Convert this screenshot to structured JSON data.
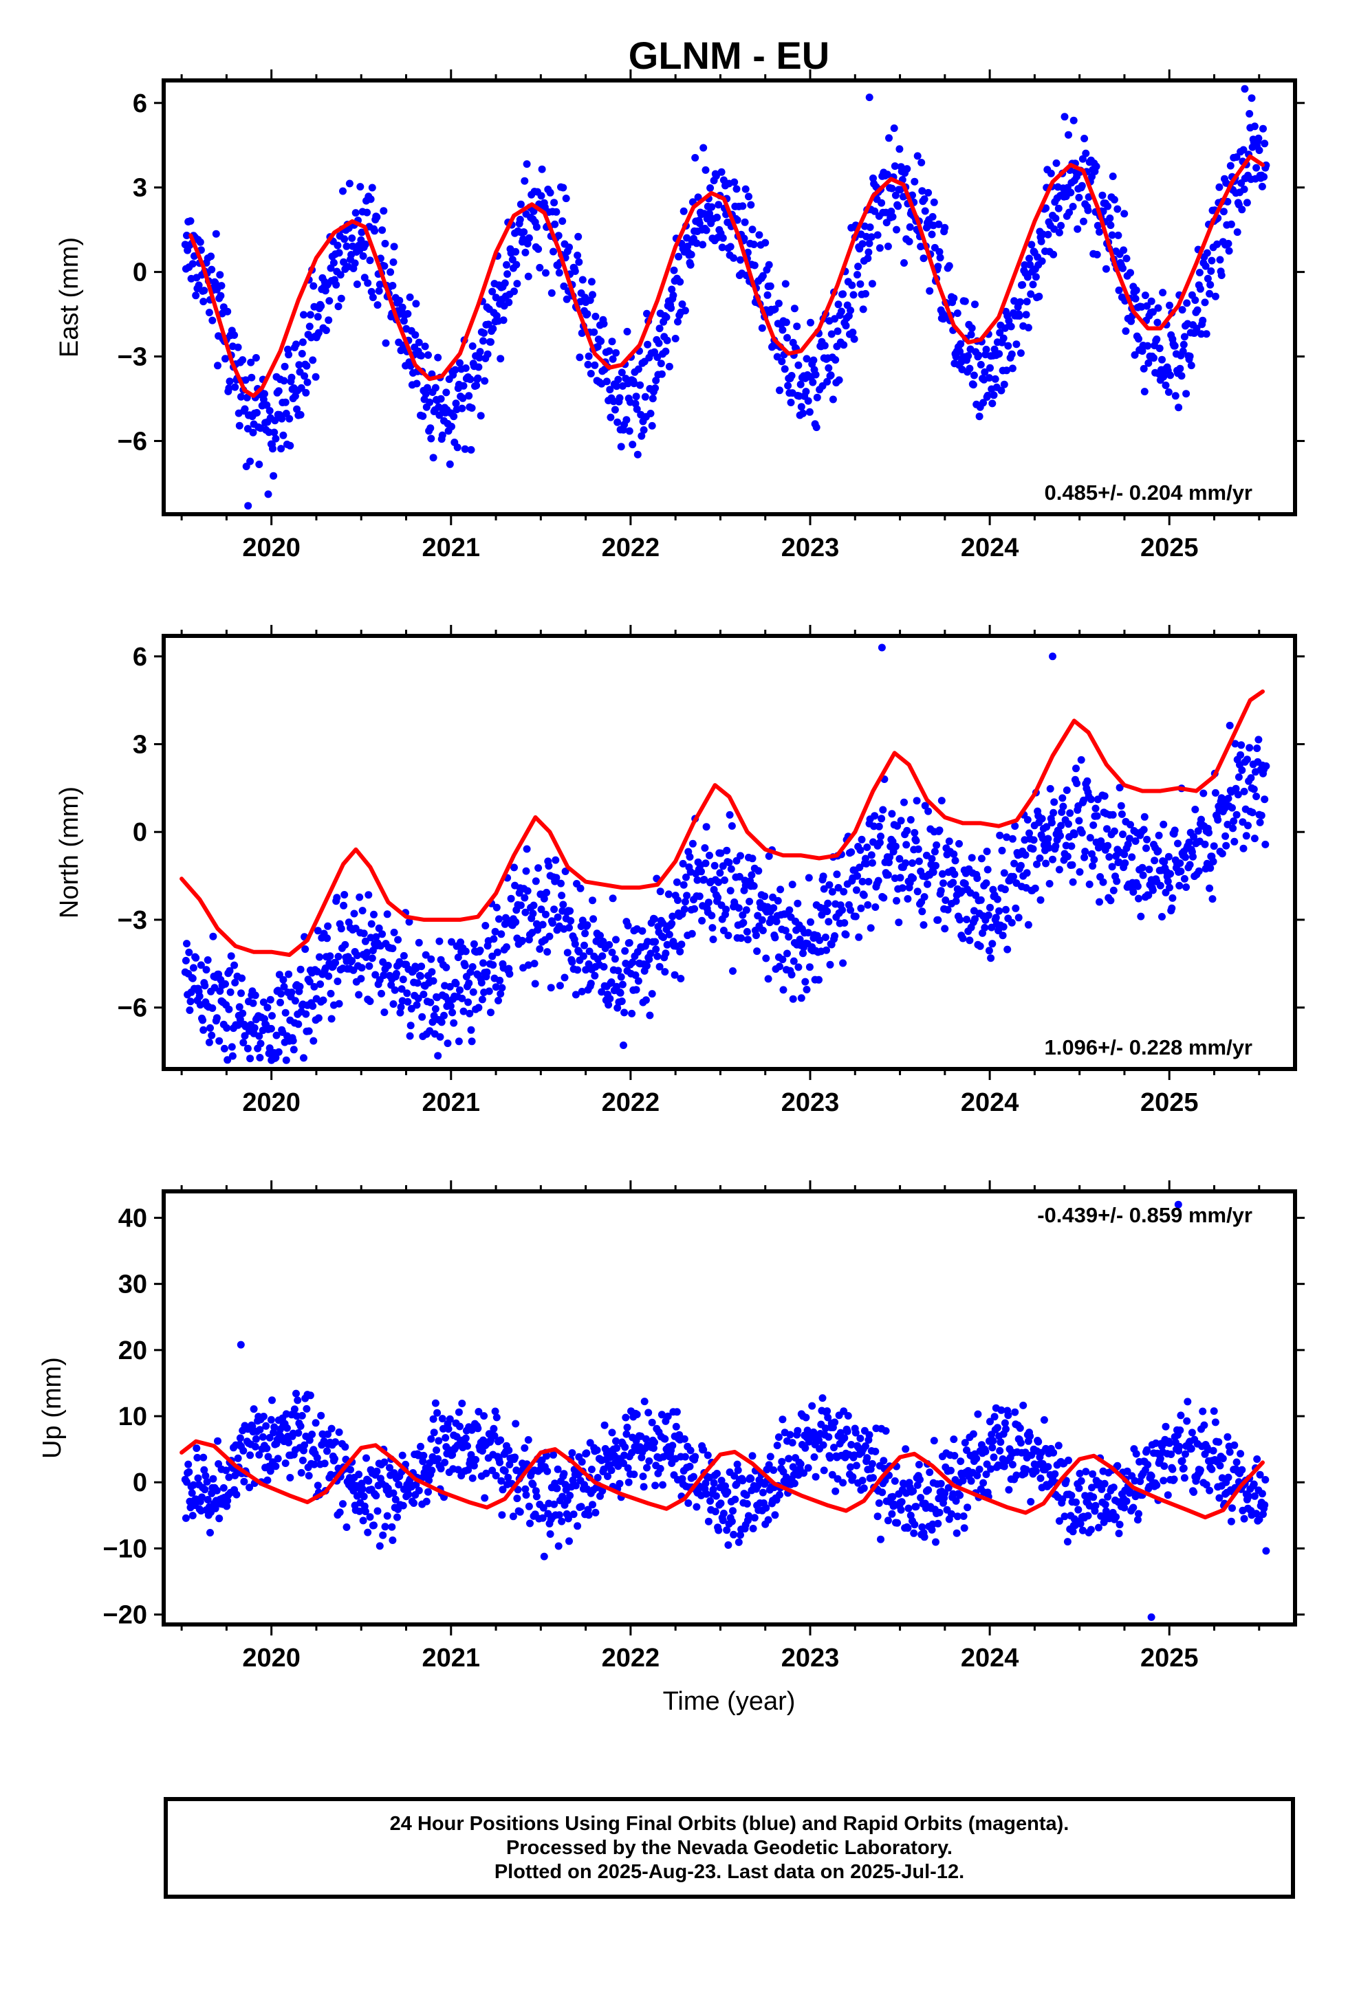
{
  "title": "GLNM - EU",
  "xlabel": "Time (year)",
  "colors": {
    "points": "#0000ff",
    "fit": "#ff0000",
    "frame": "#000000"
  },
  "chart_data": [
    {
      "type": "scatter",
      "ylabel": "East (mm)",
      "rate": "0.485+/- 0.204 mm/yr",
      "xlim": [
        2019.4,
        2025.7
      ],
      "ylim": [
        -8.6,
        6.8
      ],
      "yticks": [
        6,
        3,
        0,
        -3,
        -6
      ],
      "ytick_labels": [
        "6",
        "3",
        "0",
        "−3",
        "−6"
      ],
      "xticks": [
        2020,
        2021,
        2022,
        2023,
        2024,
        2025
      ],
      "xtick_labels": [
        "2020",
        "2021",
        "2022",
        "2023",
        "2024",
        "2025"
      ],
      "fit_series": {
        "name": "",
        "x": [
          2019.55,
          2019.62,
          2019.7,
          2019.78,
          2019.85,
          2019.9,
          2019.95,
          2020.05,
          2020.15,
          2020.25,
          2020.35,
          2020.45,
          2020.52,
          2020.6,
          2020.7,
          2020.8,
          2020.88,
          2020.95,
          2021.05,
          2021.15,
          2021.25,
          2021.35,
          2021.45,
          2021.52,
          2021.6,
          2021.7,
          2021.8,
          2021.88,
          2021.95,
          2022.05,
          2022.15,
          2022.25,
          2022.35,
          2022.45,
          2022.52,
          2022.6,
          2022.7,
          2022.8,
          2022.88,
          2022.95,
          2023.05,
          2023.15,
          2023.25,
          2023.35,
          2023.45,
          2023.52,
          2023.6,
          2023.7,
          2023.8,
          2023.88,
          2023.95,
          2024.05,
          2024.15,
          2024.25,
          2024.35,
          2024.45,
          2024.52,
          2024.6,
          2024.7,
          2024.8,
          2024.88,
          2024.95,
          2025.05,
          2025.15,
          2025.25,
          2025.35,
          2025.45,
          2025.52
        ],
        "y": [
          1.3,
          0.2,
          -1.5,
          -3.2,
          -4.2,
          -4.4,
          -4.1,
          -2.8,
          -1.0,
          0.5,
          1.4,
          1.8,
          1.6,
          0.2,
          -1.7,
          -3.3,
          -3.8,
          -3.7,
          -2.9,
          -1.2,
          0.7,
          2.0,
          2.4,
          2.1,
          0.8,
          -1.2,
          -2.9,
          -3.4,
          -3.3,
          -2.6,
          -1.0,
          0.9,
          2.3,
          2.8,
          2.6,
          1.3,
          -0.8,
          -2.4,
          -2.9,
          -2.8,
          -2.0,
          -0.5,
          1.3,
          2.7,
          3.3,
          3.1,
          1.8,
          -0.2,
          -1.9,
          -2.5,
          -2.4,
          -1.6,
          0.1,
          1.8,
          3.2,
          3.8,
          3.6,
          2.3,
          0.2,
          -1.4,
          -2.0,
          -2.0,
          -1.2,
          0.3,
          1.9,
          3.2,
          4.1,
          3.8
        ]
      },
      "series": [
        {
          "name": "",
          "amplitude": 3.3,
          "trend": 0.485,
          "offset": -0.85,
          "phase": 2020.24,
          "noise": 1.0,
          "outliers": [
            [
              2019.87,
              -8.3
            ],
            [
              2025.42,
              6.5
            ],
            [
              2023.33,
              6.2
            ]
          ]
        }
      ]
    },
    {
      "type": "scatter",
      "ylabel": "North (mm)",
      "rate": "1.096+/- 0.228 mm/yr",
      "xlim": [
        2019.4,
        2025.7
      ],
      "ylim": [
        -8.1,
        6.7
      ],
      "yticks": [
        6,
        3,
        0,
        -3,
        -6
      ],
      "ytick_labels": [
        "6",
        "3",
        "0",
        "−3",
        "−6"
      ],
      "xticks": [
        2020,
        2021,
        2022,
        2023,
        2024,
        2025
      ],
      "xtick_labels": [
        "2020",
        "2021",
        "2022",
        "2023",
        "2024",
        "2025"
      ],
      "fit_series": {
        "name": "",
        "x": [
          2019.5,
          2019.6,
          2019.7,
          2019.8,
          2019.9,
          2020.0,
          2020.1,
          2020.2,
          2020.3,
          2020.4,
          2020.47,
          2020.55,
          2020.65,
          2020.75,
          2020.85,
          2020.95,
          2021.05,
          2021.15,
          2021.25,
          2021.35,
          2021.47,
          2021.55,
          2021.65,
          2021.75,
          2021.85,
          2021.95,
          2022.05,
          2022.15,
          2022.25,
          2022.35,
          2022.47,
          2022.55,
          2022.65,
          2022.75,
          2022.85,
          2022.95,
          2023.05,
          2023.15,
          2023.25,
          2023.35,
          2023.47,
          2023.55,
          2023.65,
          2023.75,
          2023.85,
          2023.95,
          2024.05,
          2024.15,
          2024.25,
          2024.35,
          2024.47,
          2024.55,
          2024.65,
          2024.75,
          2024.85,
          2024.95,
          2025.05,
          2025.15,
          2025.25,
          2025.35,
          2025.45,
          2025.52
        ],
        "y": [
          -1.6,
          -2.3,
          -3.3,
          -3.9,
          -4.1,
          -4.1,
          -4.2,
          -3.7,
          -2.4,
          -1.1,
          -0.6,
          -1.2,
          -2.4,
          -2.9,
          -3.0,
          -3.0,
          -3.0,
          -2.9,
          -2.1,
          -0.8,
          0.5,
          0.0,
          -1.2,
          -1.7,
          -1.8,
          -1.9,
          -1.9,
          -1.8,
          -1.0,
          0.3,
          1.6,
          1.2,
          0.0,
          -0.6,
          -0.8,
          -0.8,
          -0.9,
          -0.8,
          0.0,
          1.4,
          2.7,
          2.3,
          1.1,
          0.5,
          0.3,
          0.3,
          0.2,
          0.4,
          1.3,
          2.6,
          3.8,
          3.4,
          2.3,
          1.6,
          1.4,
          1.4,
          1.5,
          1.4,
          1.9,
          3.2,
          4.5,
          4.8
        ]
      },
      "series": [
        {
          "name": "",
          "amplitude": 1.2,
          "trend": 1.096,
          "offset": -2.9,
          "phase": 2020.22,
          "noise": 1.0,
          "outliers": [
            [
              2023.4,
              6.3
            ],
            [
              2024.35,
              6.0
            ],
            [
              2020.0,
              -7.8
            ]
          ]
        }
      ]
    },
    {
      "type": "scatter",
      "ylabel": "Up (mm)",
      "rate": "-0.439+/- 0.859 mm/yr",
      "xlim": [
        2019.4,
        2025.7
      ],
      "ylim": [
        -21.5,
        44
      ],
      "yticks": [
        40,
        30,
        20,
        10,
        0,
        -10,
        -20
      ],
      "ytick_labels": [
        "40",
        "30",
        "20",
        "10",
        "0",
        "−10",
        "−20"
      ],
      "xticks": [
        2020,
        2021,
        2022,
        2023,
        2024,
        2025
      ],
      "xtick_labels": [
        "2020",
        "2021",
        "2022",
        "2023",
        "2024",
        "2025"
      ],
      "fit_series": {
        "name": "",
        "x": [
          2019.5,
          2019.58,
          2019.68,
          2019.8,
          2019.95,
          2020.1,
          2020.2,
          2020.3,
          2020.4,
          2020.5,
          2020.58,
          2020.68,
          2020.8,
          2020.95,
          2021.1,
          2021.2,
          2021.3,
          2021.4,
          2021.5,
          2021.58,
          2021.68,
          2021.8,
          2021.95,
          2022.1,
          2022.2,
          2022.3,
          2022.4,
          2022.5,
          2022.58,
          2022.68,
          2022.8,
          2022.95,
          2023.1,
          2023.2,
          2023.3,
          2023.4,
          2023.5,
          2023.58,
          2023.68,
          2023.8,
          2023.95,
          2024.1,
          2024.2,
          2024.3,
          2024.4,
          2024.5,
          2024.58,
          2024.68,
          2024.8,
          2024.95,
          2025.1,
          2025.2,
          2025.3,
          2025.4,
          2025.52
        ],
        "y": [
          4.5,
          6.2,
          5.5,
          2.5,
          -0.3,
          -2.0,
          -3.0,
          -1.5,
          2.0,
          5.2,
          5.6,
          3.5,
          0.5,
          -1.5,
          -3.0,
          -3.8,
          -2.5,
          1.0,
          4.5,
          5.0,
          3.0,
          0.0,
          -1.8,
          -3.2,
          -4.0,
          -2.5,
          1.0,
          4.2,
          4.6,
          2.8,
          -0.2,
          -2.0,
          -3.5,
          -4.3,
          -2.8,
          0.8,
          3.8,
          4.3,
          2.5,
          -0.5,
          -2.2,
          -3.8,
          -4.6,
          -3.2,
          0.5,
          3.5,
          4.0,
          2.2,
          -0.8,
          -2.6,
          -4.2,
          -5.3,
          -4.2,
          -0.5,
          3.0
        ]
      },
      "series": [
        {
          "name": "",
          "amplitude": 4.5,
          "trend": -0.439,
          "offset": 1.6,
          "phase": 2019.85,
          "noise": 3.3,
          "outliers": [
            [
              2025.05,
              42.0
            ],
            [
              2019.83,
              20.8
            ],
            [
              2024.9,
              -20.4
            ]
          ]
        }
      ]
    }
  ],
  "caption": {
    "line1": "24 Hour Positions Using Final Orbits (blue) and Rapid Orbits (magenta).",
    "line2": "Processed by the Nevada Geodetic Laboratory.",
    "line3": "Plotted on 2025-Aug-23. Last data on 2025-Jul-12."
  }
}
